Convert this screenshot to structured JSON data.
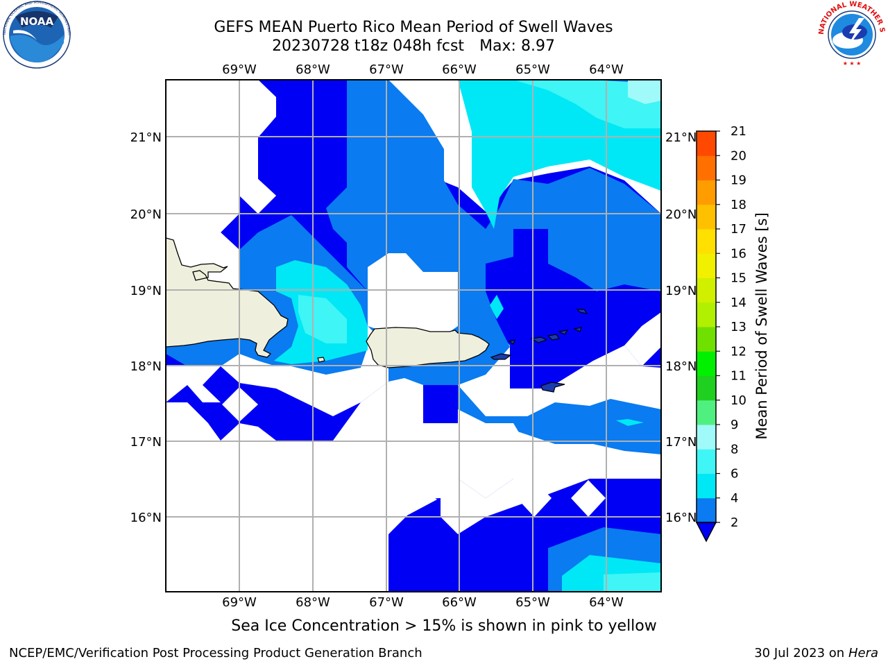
{
  "title": {
    "line1": "GEFS MEAN Puerto Rico Mean Period of Swell Waves",
    "line2_date": "20230728 t18z 048h fcst",
    "line2_max": "Max: 8.97"
  },
  "map": {
    "lon_labels": [
      "69°W",
      "68°W",
      "67°W",
      "66°W",
      "65°W",
      "64°W"
    ],
    "lat_labels": [
      "21°N",
      "20°N",
      "19°N",
      "18°N",
      "17°N",
      "16°N"
    ],
    "extent": {
      "lon_min": -70.0,
      "lon_max": -63.25,
      "lat_min": 15.0,
      "lat_max": 21.75
    }
  },
  "colorbar": {
    "label": "Mean Period of Swell Waves [s]",
    "ticks": [
      "2",
      "4",
      "6",
      "8",
      "9",
      "10",
      "11",
      "12",
      "13",
      "14",
      "15",
      "16",
      "17",
      "18",
      "19",
      "20",
      "21"
    ],
    "colors": [
      "#0a7bf0",
      "#00e8f5",
      "#40f5f5",
      "#a0fafa",
      "#50f080",
      "#20d020",
      "#00f000",
      "#70e000",
      "#b0f000",
      "#d0f000",
      "#f0f000",
      "#ffe000",
      "#ffc000",
      "#ff9c00",
      "#ff7000",
      "#ff4800",
      "#ff1010",
      "#ff0000"
    ],
    "under_color": "#0000f5",
    "extend": "min"
  },
  "chart_data": {
    "type": "heatmap",
    "title": "GEFS MEAN Puerto Rico Mean Period of Swell Waves",
    "subtitle": "20230728 t18z 048h fcst   Max: 8.97",
    "colorbar_label": "Mean Period of Swell Waves [s]",
    "levels": [
      2,
      4,
      6,
      8,
      9,
      10,
      11,
      12,
      13,
      14,
      15,
      16,
      17,
      18,
      19,
      20,
      21
    ],
    "max_value": 8.97,
    "xlim": [
      -70.0,
      -63.25
    ],
    "ylim": [
      15.0,
      21.75
    ],
    "x_ticks": [
      "69°W",
      "68°W",
      "67°W",
      "66°W",
      "65°W",
      "64°W"
    ],
    "y_ticks": [
      "21°N",
      "20°N",
      "19°N",
      "18°N",
      "17°N",
      "16°N"
    ]
  },
  "caption": "Sea Ice Concentration > 15% is shown in pink to yellow",
  "footer": {
    "left": "NCEP/EMC/Verification Post Processing Product Generation Branch",
    "right_date": "30 Jul 2023 on ",
    "right_host": "Hera"
  },
  "logos": {
    "noaa_text": "NOAA",
    "nws_text": "NATIONAL WEATHER SERVICE",
    "noaa_ring_text": "NATIONAL OCEANIC AND ATMOSPHERIC ADMINISTRATION"
  },
  "icons": {
    "noaa": "noaa-logo-icon",
    "nws": "nws-logo-icon"
  }
}
